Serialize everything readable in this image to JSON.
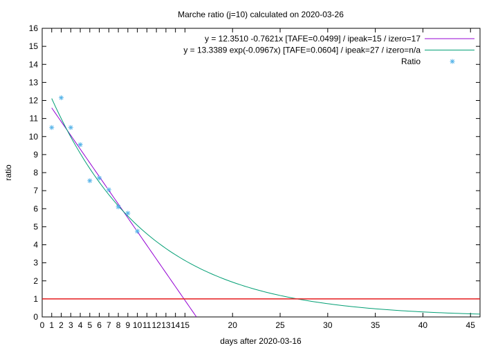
{
  "chart_data": {
    "type": "scatter",
    "title": "Marche ratio (j=10) calculated on 2020-03-26",
    "xlabel": "days after 2020-03-16",
    "ylabel": "ratio",
    "xlim": [
      0,
      46
    ],
    "ylim": [
      0,
      16
    ],
    "x_ticks": [
      0,
      1,
      2,
      3,
      4,
      5,
      6,
      7,
      8,
      9,
      10,
      11,
      12,
      13,
      14,
      15,
      20,
      25,
      30,
      35,
      40,
      45
    ],
    "y_ticks": [
      0,
      1,
      2,
      3,
      4,
      5,
      6,
      7,
      8,
      9,
      10,
      11,
      12,
      13,
      14,
      15,
      16
    ],
    "legend_position": "top-right",
    "grid": false,
    "series": [
      {
        "name": "y = 12.3510 -0.7621x  [TAFE=0.0499] / ipeak=15 / izero=17",
        "kind": "line",
        "color": "#9400d3",
        "fit": {
          "intercept": 12.351,
          "slope": -0.7621
        },
        "x_range": [
          1,
          16.2
        ]
      },
      {
        "name": "y = 13.3389 exp(-0.0967x)  [TAFE=0.0604] / ipeak=27 / izero=n/a",
        "kind": "line",
        "color": "#009e73",
        "fit": {
          "a": 13.3389,
          "b": -0.0967
        },
        "x_range": [
          1,
          46
        ]
      },
      {
        "name": "Ratio",
        "kind": "points",
        "color": "#56b4e9",
        "x": [
          1,
          2,
          3,
          4,
          5,
          6,
          7,
          8,
          9,
          10
        ],
        "y": [
          10.5,
          12.15,
          10.5,
          9.55,
          7.55,
          7.7,
          7.05,
          6.1,
          5.75,
          4.75
        ]
      },
      {
        "name": "",
        "kind": "hline",
        "color": "#e41a1c",
        "y": 1
      }
    ]
  }
}
